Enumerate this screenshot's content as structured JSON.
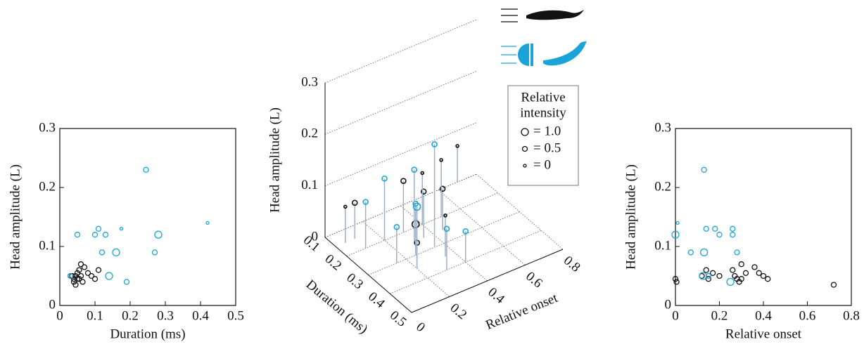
{
  "chart_data": [
    {
      "type": "scatter",
      "xlabel": "Duration (ms)",
      "ylabel": "Head amplitude (L)",
      "xlim": [
        0,
        0.5
      ],
      "xticks": [
        0,
        0.1,
        0.2,
        0.3,
        0.4,
        0.5
      ],
      "ylim": [
        0,
        0.3
      ],
      "yticks": [
        0,
        0.1,
        0.2,
        0.3
      ],
      "series": [
        {
          "color": "#111111",
          "x": [
            0.03,
            0.04,
            0.04,
            0.045,
            0.05,
            0.05,
            0.055,
            0.06,
            0.06,
            0.065,
            0.07,
            0.08,
            0.09,
            0.1,
            0.11,
            0.045,
            0.035,
            0.055
          ],
          "values": [
            0.05,
            0.045,
            0.04,
            0.05,
            0.055,
            0.045,
            0.06,
            0.07,
            0.05,
            0.04,
            0.065,
            0.055,
            0.05,
            0.045,
            0.06,
            0.035,
            0.05,
            0.045
          ],
          "sizes": [
            0.5,
            0.5,
            0.5,
            0.5,
            0.5,
            0.5,
            0.5,
            0.5,
            0.5,
            0.5,
            0.5,
            0.5,
            0.5,
            0.5,
            0.5,
            0.5,
            0.5,
            0.5
          ]
        },
        {
          "color": "#1aa3d9",
          "x": [
            0.03,
            0.05,
            0.1,
            0.11,
            0.12,
            0.13,
            0.14,
            0.16,
            0.175,
            0.19,
            0.245,
            0.27,
            0.28,
            0.42
          ],
          "values": [
            0.05,
            0.12,
            0.12,
            0.13,
            0.09,
            0.12,
            0.05,
            0.09,
            0.13,
            0.04,
            0.23,
            0.09,
            0.12,
            0.14
          ],
          "sizes": [
            0.5,
            0.5,
            0.5,
            0.5,
            0.5,
            0.5,
            1,
            1,
            0,
            0.5,
            0.5,
            0.5,
            1,
            0
          ]
        }
      ]
    },
    {
      "type": "scatter3d",
      "xlabel": "Relative onset",
      "ylabel": "Duration (ms)",
      "zlabel": "Head amplitude (L)",
      "xlim": [
        0,
        0.8
      ],
      "xticks": [
        0,
        0.2,
        0.4,
        0.6,
        0.8
      ],
      "ylim": [
        0.1,
        0.5
      ],
      "yticks": [
        0.1,
        0.2,
        0.3,
        0.4,
        0.5
      ],
      "zlim": [
        0,
        0.3
      ],
      "zticks": [
        0,
        0.1,
        0.2,
        0.3
      ],
      "size_legend": {
        "title": [
          "Relative",
          "intensity"
        ],
        "entries": [
          {
            "value": 1.0,
            "label": "= 1.0"
          },
          {
            "value": 0.5,
            "label": "= 0.5"
          },
          {
            "value": 0,
            "label": "= 0"
          }
        ]
      },
      "series": [
        {
          "color": "#111111",
          "x": [
            0.05,
            0.1,
            0.3,
            0.35,
            0.25,
            0.4,
            0.45,
            0.35,
            0.2,
            0.7,
            0.5
          ],
          "y": [
            0.15,
            0.15,
            0.2,
            0.25,
            0.3,
            0.2,
            0.25,
            0.35,
            0.35,
            0.1,
            0.2
          ],
          "values": [
            0.07,
            0.07,
            0.1,
            0.09,
            0.06,
            0.1,
            0.08,
            0.08,
            0.05,
            0.07,
            0.11
          ],
          "sizes": [
            0,
            0.5,
            0.5,
            0.5,
            1,
            0,
            0.5,
            0,
            0.5,
            0,
            0
          ]
        },
        {
          "color": "#1aa3d9",
          "x": [
            0.2,
            0.25,
            0.3,
            0.35,
            0.3,
            0.4,
            0.15,
            0.1,
            0.2
          ],
          "y": [
            0.2,
            0.3,
            0.25,
            0.3,
            0.4,
            0.4,
            0.3,
            0.2,
            0.35
          ],
          "values": [
            0.12,
            0.1,
            0.14,
            0.2,
            0.08,
            0.06,
            0.07,
            0.09,
            0.12
          ],
          "sizes": [
            0.5,
            0.5,
            0.5,
            0.5,
            0.5,
            0.5,
            0.5,
            0.5,
            1
          ]
        }
      ]
    },
    {
      "type": "scatter",
      "xlabel": "Relative onset",
      "ylabel": "Head amplitude (L)",
      "xlim": [
        0,
        0.8
      ],
      "xticks": [
        0,
        0.2,
        0.4,
        0.6,
        0.8
      ],
      "ylim": [
        0,
        0.3
      ],
      "yticks": [
        0,
        0.1,
        0.2,
        0.3
      ],
      "series": [
        {
          "color": "#111111",
          "x": [
            0,
            0.005,
            0.12,
            0.14,
            0.15,
            0.17,
            0.2,
            0.26,
            0.27,
            0.28,
            0.3,
            0.3,
            0.32,
            0.36,
            0.38,
            0.4,
            0.42,
            0.72,
            0.29
          ],
          "values": [
            0.045,
            0.04,
            0.05,
            0.06,
            0.045,
            0.055,
            0.05,
            0.06,
            0.05,
            0.045,
            0.07,
            0.045,
            0.055,
            0.065,
            0.055,
            0.05,
            0.045,
            0.035,
            0.04
          ],
          "sizes": [
            0.5,
            0.5,
            0.5,
            0.5,
            0.5,
            0.5,
            0.5,
            0.5,
            0.5,
            0.5,
            0.5,
            0.5,
            0.5,
            0.5,
            0.5,
            0.5,
            0.5,
            0.5,
            0.5
          ]
        },
        {
          "color": "#1aa3d9",
          "x": [
            0,
            0.01,
            0.07,
            0.13,
            0.13,
            0.14,
            0.18,
            0.2,
            0.26,
            0.26,
            0.28,
            0.15,
            0.25,
            0.125
          ],
          "values": [
            0.12,
            0.14,
            0.09,
            0.09,
            0.23,
            0.13,
            0.13,
            0.12,
            0.13,
            0.12,
            0.09,
            0.05,
            0.04,
            0.05
          ],
          "sizes": [
            1,
            0,
            0.5,
            1,
            0.5,
            0.5,
            0.5,
            0.5,
            0.5,
            0.5,
            0.5,
            0.5,
            1,
            1
          ]
        }
      ]
    }
  ]
}
